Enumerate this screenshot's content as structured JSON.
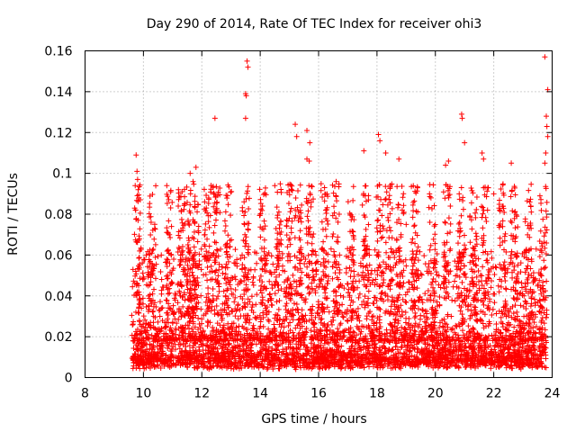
{
  "chart_data": {
    "type": "scatter",
    "title": "Day 290 of 2014, Rate Of TEC Index for receiver ohi3",
    "xlabel": "GPS time / hours",
    "ylabel": "ROTI / TECUs",
    "xlim": [
      8,
      24
    ],
    "ylim": [
      0,
      0.16
    ],
    "xticks": [
      8,
      10,
      12,
      14,
      16,
      18,
      20,
      22,
      24
    ],
    "yticks": [
      0,
      0.02,
      0.04,
      0.06,
      0.08,
      0.1,
      0.12,
      0.14,
      0.16
    ],
    "xtick_labels": [
      "8",
      "10",
      "12",
      "14",
      "16",
      "18",
      "20",
      "22",
      "24"
    ],
    "ytick_labels": [
      "0",
      "0.02",
      "0.04",
      "0.06",
      "0.08",
      "0.1",
      "0.12",
      "0.14",
      "0.16"
    ],
    "grid": true,
    "marker": "+",
    "color": "#ff0000",
    "series": [
      {
        "name": "ROTI",
        "x_range": [
          9.6,
          23.8
        ],
        "points": [
          [
            9.75,
            0.109
          ],
          [
            9.78,
            0.101
          ],
          [
            9.8,
            0.097
          ],
          [
            9.82,
            0.092
          ],
          [
            9.7,
            0.083
          ],
          [
            9.73,
            0.082
          ],
          [
            12.45,
            0.127
          ],
          [
            13.55,
            0.155
          ],
          [
            13.58,
            0.152
          ],
          [
            13.5,
            0.139
          ],
          [
            13.52,
            0.138
          ],
          [
            13.5,
            0.127
          ],
          [
            15.2,
            0.124
          ],
          [
            15.25,
            0.118
          ],
          [
            15.6,
            0.121
          ],
          [
            15.7,
            0.115
          ],
          [
            15.6,
            0.107
          ],
          [
            15.68,
            0.106
          ],
          [
            17.55,
            0.111
          ],
          [
            18.05,
            0.119
          ],
          [
            18.1,
            0.116
          ],
          [
            18.3,
            0.11
          ],
          [
            18.75,
            0.107
          ],
          [
            20.35,
            0.104
          ],
          [
            20.45,
            0.106
          ],
          [
            20.9,
            0.129
          ],
          [
            20.92,
            0.127
          ],
          [
            21.0,
            0.115
          ],
          [
            21.6,
            0.11
          ],
          [
            21.65,
            0.107
          ],
          [
            22.6,
            0.105
          ],
          [
            23.75,
            0.157
          ],
          [
            23.85,
            0.141
          ],
          [
            23.8,
            0.128
          ],
          [
            23.82,
            0.123
          ],
          [
            23.85,
            0.118
          ],
          [
            23.78,
            0.11
          ],
          [
            23.75,
            0.105
          ],
          [
            11.6,
            0.1
          ],
          [
            11.8,
            0.103
          ],
          [
            11.7,
            0.096
          ],
          [
            10.8,
            0.094
          ],
          [
            11.2,
            0.092
          ],
          [
            14.5,
            0.094
          ],
          [
            16.6,
            0.096
          ],
          [
            19.8,
            0.09
          ],
          [
            19.0,
            0.075
          ],
          [
            22.0,
            0.09
          ]
        ]
      }
    ]
  }
}
